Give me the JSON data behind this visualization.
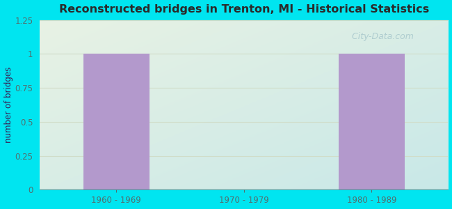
{
  "title": "Reconstructed bridges in Trenton, MI - Historical Statistics",
  "categories": [
    "1960 - 1969",
    "1970 - 1979",
    "1980 - 1989"
  ],
  "values": [
    1,
    0,
    1
  ],
  "bar_color": "#b399cc",
  "ylabel": "number of bridges",
  "ylim": [
    0,
    1.25
  ],
  "yticks": [
    0,
    0.25,
    0.5,
    0.75,
    1.0,
    1.25
  ],
  "background_outer": "#00e5f0",
  "background_plot_topleft": "#e8f2e4",
  "background_plot_bottomright": "#c8e8e8",
  "title_color": "#2a2a2a",
  "axis_label_color": "#3a1a50",
  "tick_label_color": "#507070",
  "grid_color": "#d0dcc8",
  "watermark": "  City-Data.com",
  "watermark_color": "#a8c8cc"
}
